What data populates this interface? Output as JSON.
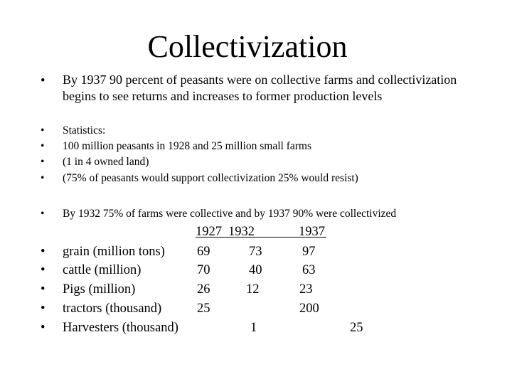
{
  "title": "Collectivization",
  "bullet_char": "•",
  "intro": "By 1937 90 percent of peasants were on collective farms and collectivization begins to see returns and increases to former production levels",
  "statistics": [
    "Statistics:",
    "100 million peasants in 1928 and 25 million small farms",
    "(1 in 4 owned land)",
    "(75% of peasants would support collectivization 25% would resist)"
  ],
  "summary": "By 1932 75% of farms were collective and by 1937 90% were collectivized",
  "table": {
    "years": [
      "1927",
      "1932",
      "1937"
    ],
    "rows": [
      {
        "label": "grain (million tons)",
        "values": [
          "69",
          "73",
          "97"
        ]
      },
      {
        "label": "cattle (million)",
        "values": [
          "70",
          "40",
          "63"
        ]
      },
      {
        "label": "Pigs  (million)",
        "values": [
          "26",
          "12",
          "23"
        ]
      },
      {
        "label": "tractors (thousand)",
        "values": [
          "25",
          "",
          "200"
        ]
      },
      {
        "label": "Harvesters  (thousand)",
        "values": [
          "",
          "1",
          "25"
        ]
      }
    ]
  }
}
